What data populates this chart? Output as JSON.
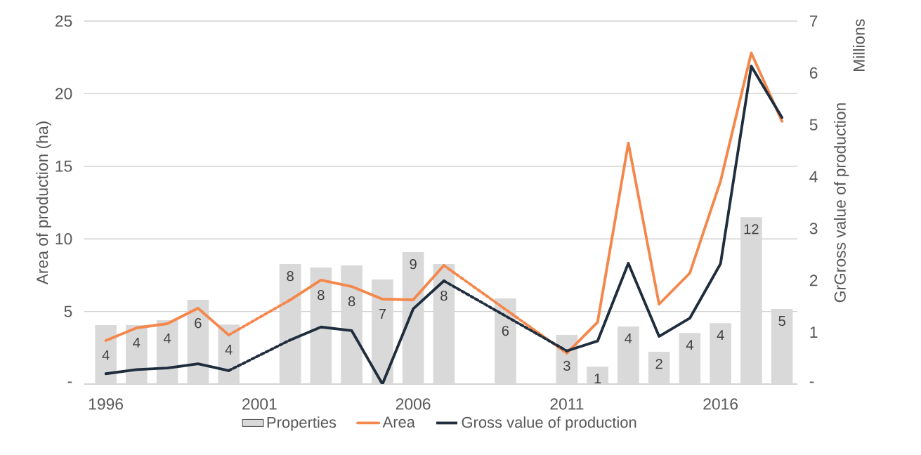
{
  "chart_data": {
    "type": "bar",
    "x": [
      1996,
      1997,
      1998,
      1999,
      2000,
      2001,
      2002,
      2003,
      2004,
      2005,
      2006,
      2007,
      2008,
      2009,
      2010,
      2011,
      2012,
      2013,
      2014,
      2015,
      2016,
      2017,
      2018
    ],
    "xlim": [
      1995.3,
      2018.5
    ],
    "xticks": [
      1996,
      2001,
      2006,
      2011,
      2016
    ],
    "ylabel": "Area of production (ha)",
    "y2label": "GrGross value of production",
    "ylim": [
      0,
      25
    ],
    "yticks": [
      {
        "value": 0,
        "label": "-"
      },
      5,
      10,
      15,
      20,
      25
    ],
    "y2lim": [
      0,
      7
    ],
    "y2ticks": [
      {
        "value": 0,
        "label": "-"
      },
      1,
      2,
      3,
      4,
      5,
      6,
      7
    ],
    "grid": "y",
    "legend": "bottom",
    "annotations": [
      "Millions"
    ],
    "series": [
      {
        "name": "Properties",
        "color": "#d9d9d9",
        "values": [
          4.06,
          4.06,
          4.4,
          5.8,
          4.1,
          null,
          8.27,
          8.03,
          8.17,
          7.2,
          9.09,
          8.27,
          null,
          5.9,
          null,
          3.38,
          1.2,
          3.97,
          2.22,
          3.52,
          4.2,
          11.5,
          5.17
        ],
        "value_labels": [
          "4",
          "4",
          "4",
          "6",
          "4",
          null,
          "8",
          "8",
          "8",
          "7",
          "9",
          "8",
          null,
          "6",
          null,
          "3",
          "1",
          "4",
          "2",
          "4",
          "4",
          "12",
          "5"
        ]
      },
      {
        "name": "Area",
        "type": "line",
        "color": "#f4874b",
        "values": [
          3.0,
          3.87,
          4.16,
          5.22,
          3.38,
          null,
          5.8,
          7.16,
          6.72,
          5.85,
          5.8,
          8.17,
          null,
          null,
          null,
          2.13,
          4.26,
          16.6,
          5.5,
          7.64,
          13.97,
          22.8,
          18.1
        ]
      },
      {
        "name": "Gross value of production",
        "type": "line",
        "axis": "y2",
        "color": "#1f2d3d",
        "values": [
          0.2,
          0.28,
          0.31,
          0.39,
          0.26,
          null,
          0.85,
          1.1,
          1.03,
          0.0,
          1.45,
          1.99,
          null,
          null,
          null,
          0.64,
          0.83,
          2.33,
          0.92,
          1.27,
          2.32,
          6.13,
          5.14
        ]
      }
    ]
  }
}
